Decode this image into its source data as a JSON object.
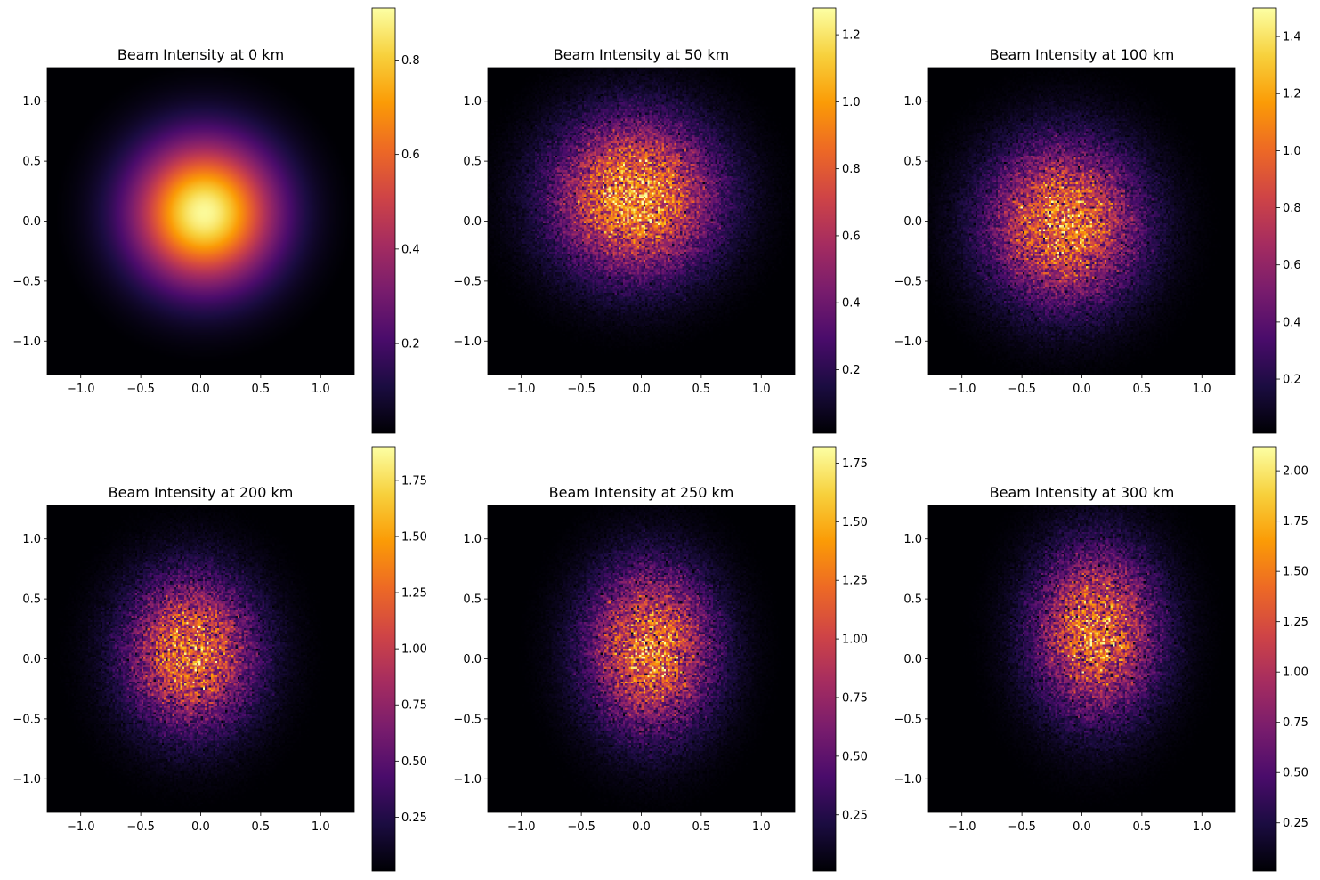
{
  "figure": {
    "colormap": "inferno",
    "colormap_stops": [
      "#000004",
      "#1b0c41",
      "#4a0c6b",
      "#781c6d",
      "#a52c60",
      "#cf4446",
      "#ed6925",
      "#fb9b06",
      "#f7d13d",
      "#fcffa4"
    ]
  },
  "chart_data": [
    {
      "type": "heatmap",
      "title": "Beam Intensity at 0 km",
      "xlim": [
        -1.28,
        1.28
      ],
      "ylim": [
        -1.28,
        1.28
      ],
      "xticks": [
        -1.0,
        -0.5,
        0.0,
        0.5,
        1.0
      ],
      "xtick_labels": [
        "−1.0",
        "−0.5",
        "0.0",
        "0.5",
        "1.0"
      ],
      "yticks": [
        -1.0,
        -0.5,
        0.0,
        0.5,
        1.0
      ],
      "ytick_labels": [
        "−1.0",
        "−0.5",
        "0.0",
        "0.5",
        "1.0"
      ],
      "beam": {
        "peak": 0.9,
        "center_x": 0.03,
        "center_y": 0.07,
        "sigma_x": 0.42,
        "sigma_y": 0.42,
        "noise": 0.0
      },
      "colorbar": {
        "range": [
          0.01,
          0.91
        ],
        "ticks": [
          0.2,
          0.4,
          0.6,
          0.8
        ],
        "tick_labels": [
          "0.2",
          "0.4",
          "0.6",
          "0.8"
        ]
      }
    },
    {
      "type": "heatmap",
      "title": "Beam Intensity at 50 km",
      "xlim": [
        -1.28,
        1.28
      ],
      "ylim": [
        -1.28,
        1.28
      ],
      "xticks": [
        -1.0,
        -0.5,
        0.0,
        0.5,
        1.0
      ],
      "xtick_labels": [
        "−1.0",
        "−0.5",
        "0.0",
        "0.5",
        "1.0"
      ],
      "yticks": [
        -1.0,
        -0.5,
        0.0,
        0.5,
        1.0
      ],
      "ytick_labels": [
        "−1.0",
        "−0.5",
        "0.0",
        "0.5",
        "1.0"
      ],
      "beam": {
        "peak": 0.97,
        "center_x": -0.05,
        "center_y": 0.2,
        "sigma_x": 0.45,
        "sigma_y": 0.43,
        "noise": 0.28
      },
      "colorbar": {
        "range": [
          0.01,
          1.28
        ],
        "ticks": [
          0.2,
          0.4,
          0.6,
          0.8,
          1.0,
          1.2
        ],
        "tick_labels": [
          "0.2",
          "0.4",
          "0.6",
          "0.8",
          "1.0",
          "1.2"
        ]
      }
    },
    {
      "type": "heatmap",
      "title": "Beam Intensity at 100 km",
      "xlim": [
        -1.28,
        1.28
      ],
      "ylim": [
        -1.28,
        1.28
      ],
      "xticks": [
        -1.0,
        -0.5,
        0.0,
        0.5,
        1.0
      ],
      "xtick_labels": [
        "−1.0",
        "−0.5",
        "0.0",
        "0.5",
        "1.0"
      ],
      "yticks": [
        -1.0,
        -0.5,
        0.0,
        0.5,
        1.0
      ],
      "ytick_labels": [
        "−1.0",
        "−0.5",
        "0.0",
        "0.5",
        "1.0"
      ],
      "beam": {
        "peak": 1.05,
        "center_x": -0.15,
        "center_y": -0.02,
        "sigma_x": 0.42,
        "sigma_y": 0.44,
        "noise": 0.3
      },
      "colorbar": {
        "range": [
          0.01,
          1.5
        ],
        "ticks": [
          0.2,
          0.4,
          0.6,
          0.8,
          1.0,
          1.2,
          1.4
        ],
        "tick_labels": [
          "0.2",
          "0.4",
          "0.6",
          "0.8",
          "1.0",
          "1.2",
          "1.4"
        ]
      }
    },
    {
      "type": "heatmap",
      "title": "Beam Intensity at 200 km",
      "xlim": [
        -1.28,
        1.28
      ],
      "ylim": [
        -1.28,
        1.28
      ],
      "xticks": [
        -1.0,
        -0.5,
        0.0,
        0.5,
        1.0
      ],
      "xtick_labels": [
        "−1.0",
        "−0.5",
        "0.0",
        "0.5",
        "1.0"
      ],
      "yticks": [
        -1.0,
        -0.5,
        0.0,
        0.5,
        1.0
      ],
      "ytick_labels": [
        "−1.0",
        "−0.5",
        "0.0",
        "0.5",
        "1.0"
      ],
      "beam": {
        "peak": 1.25,
        "center_x": -0.08,
        "center_y": 0.05,
        "sigma_x": 0.36,
        "sigma_y": 0.42,
        "noise": 0.32
      },
      "colorbar": {
        "range": [
          0.01,
          1.9
        ],
        "ticks": [
          0.25,
          0.5,
          0.75,
          1.0,
          1.25,
          1.5,
          1.75
        ],
        "tick_labels": [
          "0.25",
          "0.50",
          "0.75",
          "1.00",
          "1.25",
          "1.50",
          "1.75"
        ]
      }
    },
    {
      "type": "heatmap",
      "title": "Beam Intensity at 250 km",
      "xlim": [
        -1.28,
        1.28
      ],
      "ylim": [
        -1.28,
        1.28
      ],
      "xticks": [
        -1.0,
        -0.5,
        0.0,
        0.5,
        1.0
      ],
      "xtick_labels": [
        "−1.0",
        "−0.5",
        "0.0",
        "0.5",
        "1.0"
      ],
      "yticks": [
        -1.0,
        -0.5,
        0.0,
        0.5,
        1.0
      ],
      "ytick_labels": [
        "−1.0",
        "−0.5",
        "0.0",
        "0.5",
        "1.0"
      ],
      "beam": {
        "peak": 1.25,
        "center_x": 0.08,
        "center_y": 0.08,
        "sigma_x": 0.35,
        "sigma_y": 0.45,
        "noise": 0.32
      },
      "colorbar": {
        "range": [
          0.01,
          1.82
        ],
        "ticks": [
          0.25,
          0.5,
          0.75,
          1.0,
          1.25,
          1.5,
          1.75
        ],
        "tick_labels": [
          "0.25",
          "0.50",
          "0.75",
          "1.00",
          "1.25",
          "1.50",
          "1.75"
        ]
      }
    },
    {
      "type": "heatmap",
      "title": "Beam Intensity at 300 km",
      "xlim": [
        -1.28,
        1.28
      ],
      "ylim": [
        -1.28,
        1.28
      ],
      "xticks": [
        -1.0,
        -0.5,
        0.0,
        0.5,
        1.0
      ],
      "xtick_labels": [
        "−1.0",
        "−0.5",
        "0.0",
        "0.5",
        "1.0"
      ],
      "yticks": [
        -1.0,
        -0.5,
        0.0,
        0.5,
        1.0
      ],
      "ytick_labels": [
        "−1.0",
        "−0.5",
        "0.0",
        "0.5",
        "1.0"
      ],
      "beam": {
        "peak": 1.4,
        "center_x": 0.12,
        "center_y": 0.22,
        "sigma_x": 0.34,
        "sigma_y": 0.46,
        "noise": 0.34
      },
      "colorbar": {
        "range": [
          0.01,
          2.12
        ],
        "ticks": [
          0.25,
          0.5,
          0.75,
          1.0,
          1.25,
          1.5,
          1.75,
          2.0
        ],
        "tick_labels": [
          "0.25",
          "0.50",
          "0.75",
          "1.00",
          "1.25",
          "1.50",
          "1.75",
          "2.00"
        ]
      }
    }
  ]
}
